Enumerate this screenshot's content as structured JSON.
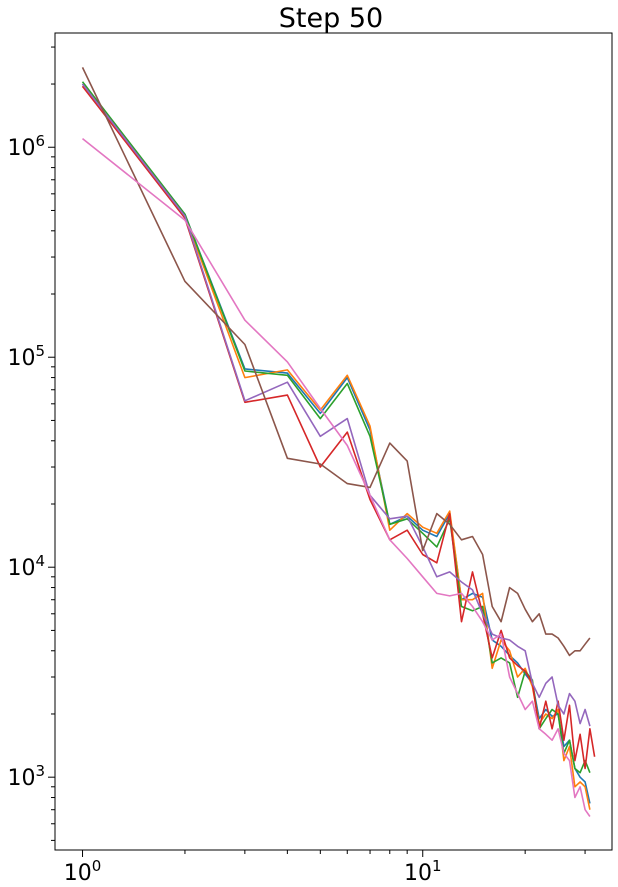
{
  "chart_data": {
    "type": "line",
    "title": "Step 50",
    "xlabel": "",
    "ylabel": "",
    "xscale": "log",
    "yscale": "log",
    "xlim": [
      0.83,
      36
    ],
    "ylim": [
      450,
      3500000
    ],
    "x_ticks": [
      {
        "value": 1,
        "base": "10",
        "exp": "0"
      },
      {
        "value": 10,
        "base": "10",
        "exp": "1"
      }
    ],
    "y_ticks": [
      {
        "value": 1000,
        "base": "10",
        "exp": "3"
      },
      {
        "value": 10000,
        "base": "10",
        "exp": "4"
      },
      {
        "value": 100000,
        "base": "10",
        "exp": "5"
      },
      {
        "value": 1000000,
        "base": "10",
        "exp": "6"
      }
    ],
    "grid": false,
    "legend": "none",
    "series": [
      {
        "color": "#1f77b4",
        "values": [
          [
            1,
            2000000
          ],
          [
            2,
            480000
          ],
          [
            3,
            88000
          ],
          [
            4,
            84000
          ],
          [
            5,
            54000
          ],
          [
            6,
            80000
          ],
          [
            7,
            45000
          ],
          [
            8,
            16000
          ],
          [
            9,
            17500
          ],
          [
            10,
            15000
          ],
          [
            11,
            14000
          ],
          [
            12,
            18000
          ],
          [
            13,
            7000
          ],
          [
            14,
            7500
          ],
          [
            15,
            7200
          ],
          [
            16,
            4500
          ],
          [
            17,
            4200
          ],
          [
            18,
            3800
          ],
          [
            19,
            3500
          ],
          [
            20,
            3100
          ],
          [
            21,
            2800
          ],
          [
            22,
            1900
          ],
          [
            23,
            2100
          ],
          [
            24,
            1950
          ],
          [
            25,
            2000
          ],
          [
            26,
            1400
          ],
          [
            27,
            1500
          ],
          [
            28,
            1100
          ],
          [
            29,
            1000
          ],
          [
            30,
            950
          ],
          [
            31,
            750
          ]
        ]
      },
      {
        "color": "#ff7f0e",
        "values": [
          [
            1,
            1950000
          ],
          [
            2,
            470000
          ],
          [
            3,
            80000
          ],
          [
            4,
            87000
          ],
          [
            5,
            56000
          ],
          [
            6,
            82000
          ],
          [
            7,
            47000
          ],
          [
            8,
            15000
          ],
          [
            9,
            18000
          ],
          [
            10,
            15500
          ],
          [
            11,
            14500
          ],
          [
            12,
            18500
          ],
          [
            13,
            7000
          ],
          [
            14,
            7000
          ],
          [
            15,
            7500
          ],
          [
            16,
            3300
          ],
          [
            17,
            4500
          ],
          [
            18,
            4000
          ],
          [
            19,
            3000
          ],
          [
            20,
            3300
          ],
          [
            21,
            2700
          ],
          [
            22,
            1800
          ],
          [
            23,
            2000
          ],
          [
            24,
            1900
          ],
          [
            25,
            2100
          ],
          [
            26,
            1200
          ],
          [
            27,
            1400
          ],
          [
            28,
            900
          ],
          [
            29,
            950
          ],
          [
            30,
            900
          ],
          [
            31,
            700
          ]
        ]
      },
      {
        "color": "#2ca02c",
        "values": [
          [
            1,
            2050000
          ],
          [
            2,
            480000
          ],
          [
            3,
            86000
          ],
          [
            4,
            82000
          ],
          [
            5,
            51000
          ],
          [
            6,
            75000
          ],
          [
            7,
            42000
          ],
          [
            8,
            16000
          ],
          [
            9,
            17000
          ],
          [
            10,
            14500
          ],
          [
            11,
            12500
          ],
          [
            12,
            17000
          ],
          [
            13,
            6500
          ],
          [
            14,
            6200
          ],
          [
            15,
            6500
          ],
          [
            16,
            3500
          ],
          [
            17,
            3700
          ],
          [
            18,
            3500
          ],
          [
            19,
            2400
          ],
          [
            20,
            3200
          ],
          [
            21,
            2900
          ],
          [
            22,
            1700
          ],
          [
            23,
            1900
          ],
          [
            24,
            2100
          ],
          [
            25,
            2000
          ],
          [
            26,
            1300
          ],
          [
            27,
            1500
          ],
          [
            28,
            1100
          ],
          [
            29,
            1050
          ],
          [
            30,
            1200
          ],
          [
            31,
            1050
          ]
        ]
      },
      {
        "color": "#d62728",
        "values": [
          [
            1,
            1950000
          ],
          [
            2,
            460000
          ],
          [
            3,
            61000
          ],
          [
            4,
            66000
          ],
          [
            5,
            30000
          ],
          [
            6,
            44000
          ],
          [
            7,
            21000
          ],
          [
            8,
            13500
          ],
          [
            9,
            15000
          ],
          [
            10,
            11500
          ],
          [
            11,
            10500
          ],
          [
            12,
            18000
          ],
          [
            13,
            5500
          ],
          [
            14,
            9500
          ],
          [
            15,
            6000
          ],
          [
            16,
            3700
          ],
          [
            17,
            5000
          ],
          [
            18,
            3700
          ],
          [
            19,
            3400
          ],
          [
            20,
            3200
          ],
          [
            21,
            2800
          ],
          [
            22,
            1700
          ],
          [
            23,
            2300
          ],
          [
            24,
            1700
          ],
          [
            25,
            2300
          ],
          [
            26,
            1500
          ],
          [
            27,
            2200
          ],
          [
            28,
            1200
          ],
          [
            29,
            1600
          ],
          [
            30,
            1100
          ],
          [
            31,
            1700
          ],
          [
            32,
            1250
          ]
        ]
      },
      {
        "color": "#9467bd",
        "values": [
          [
            1,
            2000000
          ],
          [
            2,
            470000
          ],
          [
            3,
            62000
          ],
          [
            4,
            76000
          ],
          [
            5,
            42000
          ],
          [
            6,
            51000
          ],
          [
            7,
            22000
          ],
          [
            8,
            17000
          ],
          [
            9,
            17500
          ],
          [
            10,
            12500
          ],
          [
            11,
            9000
          ],
          [
            12,
            9500
          ],
          [
            13,
            8500
          ],
          [
            14,
            7800
          ],
          [
            15,
            6000
          ],
          [
            16,
            4800
          ],
          [
            17,
            4600
          ],
          [
            18,
            4500
          ],
          [
            19,
            4200
          ],
          [
            20,
            4000
          ],
          [
            21,
            2800
          ],
          [
            22,
            2400
          ],
          [
            23,
            2800
          ],
          [
            24,
            3000
          ],
          [
            25,
            2200
          ],
          [
            26,
            2000
          ],
          [
            27,
            2500
          ],
          [
            28,
            2300
          ],
          [
            29,
            1800
          ],
          [
            30,
            2100
          ],
          [
            31,
            1750
          ]
        ]
      },
      {
        "color": "#8c564b",
        "values": [
          [
            1,
            2400000
          ],
          [
            2,
            230000
          ],
          [
            3,
            115000
          ],
          [
            4,
            33000
          ],
          [
            5,
            31000
          ],
          [
            6,
            25000
          ],
          [
            7,
            24000
          ],
          [
            8,
            39000
          ],
          [
            9,
            32000
          ],
          [
            10,
            12000
          ],
          [
            11,
            18000
          ],
          [
            12,
            16000
          ],
          [
            13,
            13500
          ],
          [
            14,
            14000
          ],
          [
            15,
            11500
          ],
          [
            16,
            6500
          ],
          [
            17,
            5500
          ],
          [
            18,
            8000
          ],
          [
            19,
            7500
          ],
          [
            20,
            6300
          ],
          [
            21,
            5500
          ],
          [
            22,
            6000
          ],
          [
            23,
            4800
          ],
          [
            24,
            4800
          ],
          [
            25,
            4600
          ],
          [
            26,
            4200
          ],
          [
            27,
            3800
          ],
          [
            28,
            4000
          ],
          [
            29,
            4000
          ],
          [
            30,
            4300
          ],
          [
            31,
            4600
          ]
        ]
      },
      {
        "color": "#e377c2",
        "values": [
          [
            1,
            1100000
          ],
          [
            2,
            450000
          ],
          [
            3,
            150000
          ],
          [
            4,
            95000
          ],
          [
            5,
            57000
          ],
          [
            6,
            38000
          ],
          [
            7,
            22000
          ],
          [
            8,
            13500
          ],
          [
            9,
            11000
          ],
          [
            10,
            9000
          ],
          [
            11,
            7500
          ],
          [
            12,
            7300
          ],
          [
            13,
            7500
          ],
          [
            14,
            6500
          ],
          [
            15,
            5500
          ],
          [
            16,
            4500
          ],
          [
            17,
            4800
          ],
          [
            18,
            3000
          ],
          [
            19,
            2500
          ],
          [
            20,
            2100
          ],
          [
            21,
            2300
          ],
          [
            22,
            1700
          ],
          [
            23,
            1600
          ],
          [
            24,
            1500
          ],
          [
            25,
            1700
          ],
          [
            26,
            1300
          ],
          [
            27,
            1200
          ],
          [
            28,
            800
          ],
          [
            29,
            900
          ],
          [
            30,
            700
          ],
          [
            31,
            650
          ]
        ]
      }
    ]
  }
}
